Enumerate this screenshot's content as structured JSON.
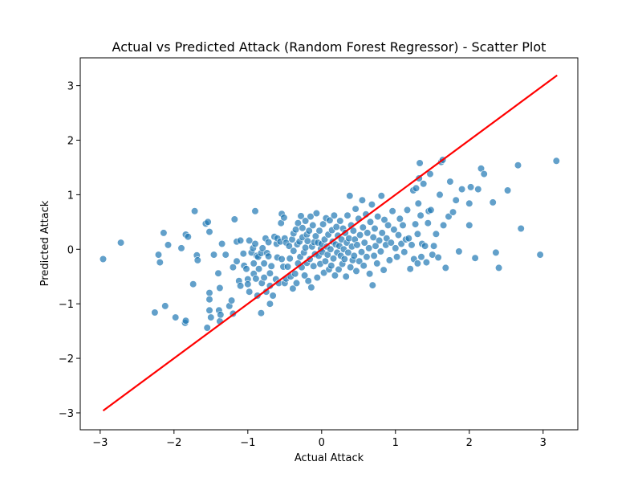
{
  "chart_data": {
    "type": "scatter",
    "title": "Actual vs Predicted Attack (Random Forest Regressor) - Scatter Plot",
    "xlabel": "Actual Attack",
    "ylabel": "Predicted Attack",
    "xlim": [
      -3.27,
      3.47
    ],
    "ylim": [
      -3.31,
      3.51
    ],
    "xticks": [
      -3,
      -2,
      -1,
      0,
      1,
      2,
      3
    ],
    "yticks": [
      -3,
      -2,
      -1,
      0,
      1,
      2,
      3
    ],
    "xtick_labels": [
      "−3",
      "−2",
      "−1",
      "0",
      "1",
      "2",
      "3"
    ],
    "ytick_labels": [
      "−3",
      "−2",
      "−1",
      "0",
      "1",
      "2",
      "3"
    ],
    "grid": false,
    "colors": {
      "points": "#1f77b4",
      "points_edge": "#ffffff",
      "line": "#ff0000"
    },
    "reference_line": {
      "x": [
        -2.96,
        3.19
      ],
      "y": [
        -2.96,
        3.19
      ]
    },
    "points": [
      [
        -2.96,
        -0.18
      ],
      [
        -2.72,
        0.12
      ],
      [
        -2.26,
        -1.16
      ],
      [
        -2.21,
        -0.1
      ],
      [
        -2.19,
        -0.24
      ],
      [
        -2.14,
        0.3
      ],
      [
        -2.12,
        -1.04
      ],
      [
        -2.08,
        0.08
      ],
      [
        -1.98,
        -1.25
      ],
      [
        -1.9,
        0.02
      ],
      [
        -1.85,
        -1.35
      ],
      [
        -1.84,
        -1.31
      ],
      [
        -1.84,
        0.27
      ],
      [
        -1.81,
        0.23
      ],
      [
        -1.74,
        -0.64
      ],
      [
        -1.72,
        0.7
      ],
      [
        -1.69,
        -0.11
      ],
      [
        -1.68,
        -0.2
      ],
      [
        -1.57,
        0.47
      ],
      [
        -1.55,
        -1.44
      ],
      [
        -1.54,
        0.5
      ],
      [
        -1.52,
        -0.8
      ],
      [
        -1.52,
        -0.92
      ],
      [
        -1.52,
        -1.12
      ],
      [
        -1.52,
        0.32
      ],
      [
        -1.5,
        -1.25
      ],
      [
        -1.46,
        -0.1
      ],
      [
        -1.4,
        -0.44
      ],
      [
        -1.39,
        -1.12
      ],
      [
        -1.38,
        -0.71
      ],
      [
        -1.38,
        -1.32
      ],
      [
        -1.37,
        -1.2
      ],
      [
        -1.35,
        0.1
      ],
      [
        -1.3,
        -0.1
      ],
      [
        -1.25,
        -1.04
      ],
      [
        -1.22,
        -0.94
      ],
      [
        -1.2,
        -1.18
      ],
      [
        -1.2,
        -0.33
      ],
      [
        -1.18,
        0.55
      ],
      [
        -1.15,
        -0.22
      ],
      [
        -1.15,
        0.14
      ],
      [
        -1.12,
        -0.58
      ],
      [
        -1.1,
        -0.67
      ],
      [
        -1.1,
        0.16
      ],
      [
        -1.06,
        -0.08
      ],
      [
        -1.05,
        -0.3
      ],
      [
        -1.02,
        -0.36
      ],
      [
        -1.0,
        -0.55
      ],
      [
        -1.0,
        -0.64
      ],
      [
        -0.98,
        -0.78
      ],
      [
        -0.98,
        0.16
      ],
      [
        -0.95,
        -0.06
      ],
      [
        -0.93,
        0.02
      ],
      [
        -0.92,
        -0.26
      ],
      [
        -0.92,
        -0.45
      ],
      [
        -0.9,
        0.1
      ],
      [
        -0.9,
        0.7
      ],
      [
        -0.89,
        -0.54
      ],
      [
        -0.88,
        -0.12
      ],
      [
        -0.87,
        -0.85
      ],
      [
        -0.86,
        -0.14
      ],
      [
        -0.85,
        -0.36
      ],
      [
        -0.82,
        -0.07
      ],
      [
        -0.82,
        -1.17
      ],
      [
        -0.81,
        -0.62
      ],
      [
        -0.8,
        0.02
      ],
      [
        -0.78,
        -0.26
      ],
      [
        -0.78,
        -0.52
      ],
      [
        -0.76,
        0.2
      ],
      [
        -0.75,
        -0.78
      ],
      [
        -0.74,
        -0.07
      ],
      [
        -0.72,
        -0.13
      ],
      [
        -0.72,
        0.13
      ],
      [
        -0.7,
        -0.44
      ],
      [
        -0.7,
        -0.67
      ],
      [
        -0.7,
        -1.0
      ],
      [
        -0.68,
        -0.31
      ],
      [
        -0.66,
        -0.85
      ],
      [
        -0.64,
        0.23
      ],
      [
        -0.62,
        -0.55
      ],
      [
        -0.61,
        0.1
      ],
      [
        -0.6,
        -0.15
      ],
      [
        -0.6,
        0.2
      ],
      [
        -0.58,
        -0.62
      ],
      [
        -0.56,
        0.14
      ],
      [
        -0.55,
        0.48
      ],
      [
        -0.54,
        0.65
      ],
      [
        -0.54,
        -0.18
      ],
      [
        -0.52,
        -0.32
      ],
      [
        -0.51,
        0.58
      ],
      [
        -0.5,
        -0.62
      ],
      [
        -0.5,
        0.2
      ],
      [
        -0.48,
        -0.54
      ],
      [
        -0.48,
        0.12
      ],
      [
        -0.46,
        -0.32
      ],
      [
        -0.44,
        0.06
      ],
      [
        -0.43,
        -0.17
      ],
      [
        -0.42,
        -0.5
      ],
      [
        -0.4,
        0.18
      ],
      [
        -0.39,
        -0.72
      ],
      [
        -0.38,
        0.29
      ],
      [
        -0.38,
        -0.03
      ],
      [
        -0.36,
        -0.45
      ],
      [
        -0.35,
        0.36
      ],
      [
        -0.34,
        -0.62
      ],
      [
        -0.33,
        0.09
      ],
      [
        -0.32,
        -0.26
      ],
      [
        -0.32,
        0.48
      ],
      [
        -0.3,
        0.14
      ],
      [
        -0.29,
        -0.14
      ],
      [
        -0.28,
        0.61
      ],
      [
        -0.27,
        -0.33
      ],
      [
        -0.26,
        0.22
      ],
      [
        -0.26,
        0.39
      ],
      [
        -0.24,
        -0.06
      ],
      [
        -0.23,
        -0.48
      ],
      [
        -0.22,
        0.03
      ],
      [
        -0.22,
        0.52
      ],
      [
        -0.2,
        0.27
      ],
      [
        -0.2,
        -0.25
      ],
      [
        -0.19,
        0.15
      ],
      [
        -0.18,
        -0.58
      ],
      [
        -0.17,
        0.34
      ],
      [
        -0.16,
        -0.18
      ],
      [
        -0.15,
        0.6
      ],
      [
        -0.14,
        -0.7
      ],
      [
        -0.13,
        0.05
      ],
      [
        -0.12,
        0.44
      ],
      [
        -0.11,
        -0.31
      ],
      [
        -0.1,
        0.13
      ],
      [
        -0.09,
        -0.09
      ],
      [
        -0.08,
        0.24
      ],
      [
        -0.07,
        0.66
      ],
      [
        -0.06,
        -0.52
      ],
      [
        -0.05,
        0.12
      ],
      [
        -0.04,
        -0.12
      ],
      [
        -0.03,
        0.34
      ],
      [
        -0.02,
        -0.27
      ],
      [
        -0.01,
        0.01
      ],
      [
        0.0,
        0.1
      ],
      [
        0.01,
        -0.05
      ],
      [
        0.02,
        0.46
      ],
      [
        0.03,
        -0.43
      ],
      [
        0.04,
        0.18
      ],
      [
        0.05,
        -0.22
      ],
      [
        0.06,
        0.57
      ],
      [
        0.07,
        0.05
      ],
      [
        0.08,
        -0.1
      ],
      [
        0.09,
        0.27
      ],
      [
        0.1,
        -0.37
      ],
      [
        0.11,
        0.53
      ],
      [
        0.12,
        0.0
      ],
      [
        0.13,
        -0.3
      ],
      [
        0.14,
        0.35
      ],
      [
        0.15,
        0.14
      ],
      [
        0.16,
        -0.17
      ],
      [
        0.17,
        0.62
      ],
      [
        0.18,
        -0.48
      ],
      [
        0.19,
        0.09
      ],
      [
        0.2,
        0.41
      ],
      [
        0.21,
        -0.06
      ],
      [
        0.22,
        0.25
      ],
      [
        0.23,
        -0.37
      ],
      [
        0.24,
        0.06
      ],
      [
        0.25,
        0.52
      ],
      [
        0.26,
        -0.12
      ],
      [
        0.27,
        0.18
      ],
      [
        0.28,
        -0.27
      ],
      [
        0.29,
        0.38
      ],
      [
        0.3,
        0.0
      ],
      [
        0.31,
        -0.18
      ],
      [
        0.32,
        0.3
      ],
      [
        0.33,
        -0.5
      ],
      [
        0.34,
        0.12
      ],
      [
        0.35,
        0.62
      ],
      [
        0.36,
        -0.06
      ],
      [
        0.37,
        0.2
      ],
      [
        0.38,
        0.98
      ],
      [
        0.39,
        -0.33
      ],
      [
        0.4,
        0.44
      ],
      [
        0.41,
        0.05
      ],
      [
        0.42,
        -0.2
      ],
      [
        0.43,
        0.34
      ],
      [
        0.44,
        -0.12
      ],
      [
        0.45,
        0.18
      ],
      [
        0.46,
        0.74
      ],
      [
        0.47,
        -0.4
      ],
      [
        0.48,
        0.08
      ],
      [
        0.5,
        0.56
      ],
      [
        0.51,
        -0.22
      ],
      [
        0.52,
        0.26
      ],
      [
        0.54,
        -0.05
      ],
      [
        0.55,
        0.9
      ],
      [
        0.56,
        0.4
      ],
      [
        0.57,
        -0.3
      ],
      [
        0.58,
        0.12
      ],
      [
        0.6,
        0.64
      ],
      [
        0.61,
        -0.14
      ],
      [
        0.62,
        0.3
      ],
      [
        0.64,
        0.02
      ],
      [
        0.65,
        -0.45
      ],
      [
        0.66,
        0.5
      ],
      [
        0.68,
        0.82
      ],
      [
        0.69,
        -0.66
      ],
      [
        0.7,
        0.22
      ],
      [
        0.71,
        -0.12
      ],
      [
        0.72,
        0.38
      ],
      [
        0.73,
        0.06
      ],
      [
        0.75,
        -0.26
      ],
      [
        0.76,
        0.6
      ],
      [
        0.78,
        0.16
      ],
      [
        0.8,
        -0.04
      ],
      [
        0.81,
        0.98
      ],
      [
        0.82,
        0.3
      ],
      [
        0.84,
        -0.38
      ],
      [
        0.85,
        0.54
      ],
      [
        0.87,
        0.08
      ],
      [
        0.88,
        0.2
      ],
      [
        0.9,
        0.44
      ],
      [
        0.92,
        -0.2
      ],
      [
        0.94,
        0.12
      ],
      [
        0.96,
        0.7
      ],
      [
        0.98,
        0.36
      ],
      [
        1.0,
        0.02
      ],
      [
        1.02,
        -0.14
      ],
      [
        1.04,
        0.26
      ],
      [
        1.06,
        0.56
      ],
      [
        1.08,
        0.1
      ],
      [
        1.1,
        0.44
      ],
      [
        1.12,
        -0.05
      ],
      [
        1.14,
        0.18
      ],
      [
        1.16,
        0.72
      ],
      [
        1.18,
        0.2
      ],
      [
        1.2,
        -0.36
      ],
      [
        1.22,
        0.08
      ],
      [
        1.24,
        1.08
      ],
      [
        1.25,
        -0.18
      ],
      [
        1.27,
        0.46
      ],
      [
        1.28,
        1.12
      ],
      [
        1.3,
        -0.26
      ],
      [
        1.3,
        0.28
      ],
      [
        1.31,
        0.84
      ],
      [
        1.32,
        1.3
      ],
      [
        1.33,
        1.58
      ],
      [
        1.34,
        0.62
      ],
      [
        1.35,
        -0.14
      ],
      [
        1.36,
        0.1
      ],
      [
        1.38,
        1.2
      ],
      [
        1.4,
        0.06
      ],
      [
        1.42,
        -0.24
      ],
      [
        1.44,
        0.48
      ],
      [
        1.45,
        0.7
      ],
      [
        1.47,
        1.38
      ],
      [
        1.48,
        0.72
      ],
      [
        1.5,
        -0.1
      ],
      [
        1.52,
        0.06
      ],
      [
        1.55,
        0.28
      ],
      [
        1.58,
        -0.15
      ],
      [
        1.6,
        1.0
      ],
      [
        1.62,
        1.6
      ],
      [
        1.64,
        1.64
      ],
      [
        1.65,
        0.44
      ],
      [
        1.68,
        -0.34
      ],
      [
        1.72,
        0.6
      ],
      [
        1.74,
        1.24
      ],
      [
        1.78,
        0.68
      ],
      [
        1.82,
        0.9
      ],
      [
        1.86,
        -0.04
      ],
      [
        1.9,
        1.1
      ],
      [
        2.0,
        0.84
      ],
      [
        2.02,
        1.14
      ],
      [
        2.08,
        -0.16
      ],
      [
        2.12,
        1.1
      ],
      [
        2.16,
        1.48
      ],
      [
        2.2,
        1.38
      ],
      [
        2.32,
        0.86
      ],
      [
        2.36,
        -0.06
      ],
      [
        2.4,
        -0.34
      ],
      [
        2.52,
        1.08
      ],
      [
        2.66,
        1.54
      ],
      [
        2.7,
        0.38
      ],
      [
        2.96,
        -0.1
      ],
      [
        3.18,
        1.62
      ],
      [
        2.0,
        0.44
      ]
    ]
  }
}
